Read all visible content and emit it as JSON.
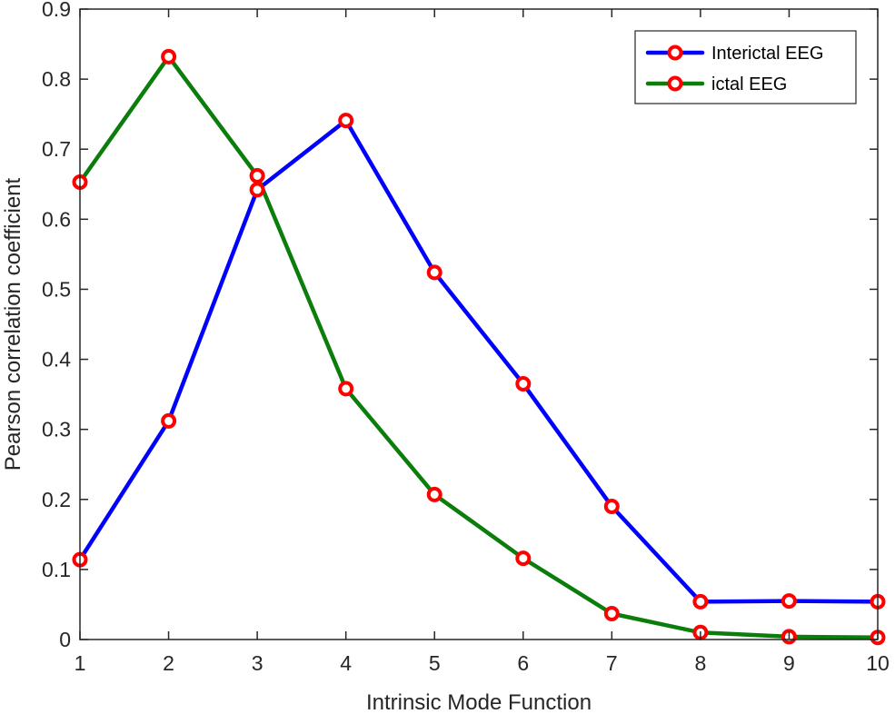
{
  "chart_data": {
    "type": "line",
    "title": "",
    "xlabel": "Intrinsic Mode Function",
    "ylabel": "Pearson correlation coefficient",
    "xlim": [
      1,
      10
    ],
    "ylim": [
      0,
      0.9
    ],
    "x": [
      1,
      2,
      3,
      4,
      5,
      6,
      7,
      8,
      9,
      10
    ],
    "xticks": [
      "1",
      "2",
      "3",
      "4",
      "5",
      "6",
      "7",
      "8",
      "9",
      "10"
    ],
    "yticks": [
      "0",
      "0.1",
      "0.2",
      "0.3",
      "0.4",
      "0.5",
      "0.6",
      "0.7",
      "0.8",
      "0.9"
    ],
    "grid": false,
    "legend_position": "top-right",
    "marker": "circle",
    "marker_edge_color": "#ff0000",
    "series": [
      {
        "name": "Interictal EEG",
        "color": "#0000ff",
        "values": [
          0.114,
          0.312,
          0.642,
          0.741,
          0.524,
          0.365,
          0.19,
          0.054,
          0.055,
          0.054
        ]
      },
      {
        "name": "ictal EEG",
        "color": "#0b7d0b",
        "values": [
          0.653,
          0.832,
          0.662,
          0.358,
          0.207,
          0.116,
          0.037,
          0.01,
          0.004,
          0.003
        ]
      }
    ]
  }
}
